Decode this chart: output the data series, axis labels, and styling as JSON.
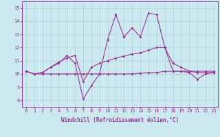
{
  "xlabel": "Windchill (Refroidissement éolien,°C)",
  "background_color": "#cce9f0",
  "grid_color": "#aacfdc",
  "line_color": "#993399",
  "xlim": [
    -0.5,
    23.5
  ],
  "ylim": [
    7.5,
    15.5
  ],
  "yticks": [
    8,
    9,
    10,
    11,
    12,
    13,
    14,
    15
  ],
  "xticks": [
    0,
    1,
    2,
    3,
    4,
    5,
    6,
    7,
    8,
    9,
    10,
    11,
    12,
    13,
    14,
    15,
    16,
    17,
    18,
    19,
    20,
    21,
    22,
    23
  ],
  "line1_x": [
    0,
    1,
    2,
    3,
    4,
    5,
    6,
    7,
    8,
    9,
    10,
    11,
    12,
    13,
    14,
    15,
    16,
    17,
    18,
    19,
    20,
    21,
    22,
    23
  ],
  "line1_y": [
    10.2,
    10.0,
    10.1,
    10.5,
    10.8,
    11.4,
    10.8,
    8.1,
    9.1,
    10.0,
    12.6,
    14.5,
    12.8,
    13.5,
    12.8,
    14.6,
    14.5,
    12.0,
    10.2,
    10.2,
    10.1,
    9.6,
    10.0,
    10.1
  ],
  "line2_x": [
    0,
    1,
    2,
    3,
    4,
    5,
    6,
    7,
    8,
    9,
    10,
    11,
    12,
    13,
    14,
    15,
    16,
    17,
    18,
    19,
    20,
    21,
    22,
    23
  ],
  "line2_y": [
    10.2,
    10.0,
    10.1,
    10.5,
    10.9,
    11.2,
    11.4,
    9.4,
    10.5,
    10.8,
    11.0,
    11.2,
    11.35,
    11.5,
    11.6,
    11.8,
    12.0,
    12.0,
    10.8,
    10.5,
    10.2,
    10.1,
    10.1,
    10.1
  ],
  "line3_x": [
    0,
    1,
    2,
    3,
    4,
    5,
    6,
    7,
    8,
    9,
    10,
    11,
    12,
    13,
    14,
    15,
    16,
    17,
    18,
    19,
    20,
    21,
    22,
    23
  ],
  "line3_y": [
    10.2,
    10.0,
    10.0,
    10.0,
    10.0,
    10.0,
    10.0,
    10.0,
    10.0,
    10.0,
    10.0,
    10.0,
    10.0,
    10.0,
    10.05,
    10.1,
    10.1,
    10.2,
    10.2,
    10.2,
    10.2,
    10.2,
    10.2,
    10.2
  ],
  "tick_fontsize": 5.0,
  "xlabel_fontsize": 5.5,
  "marker_size": 2.0,
  "line_width": 0.8
}
